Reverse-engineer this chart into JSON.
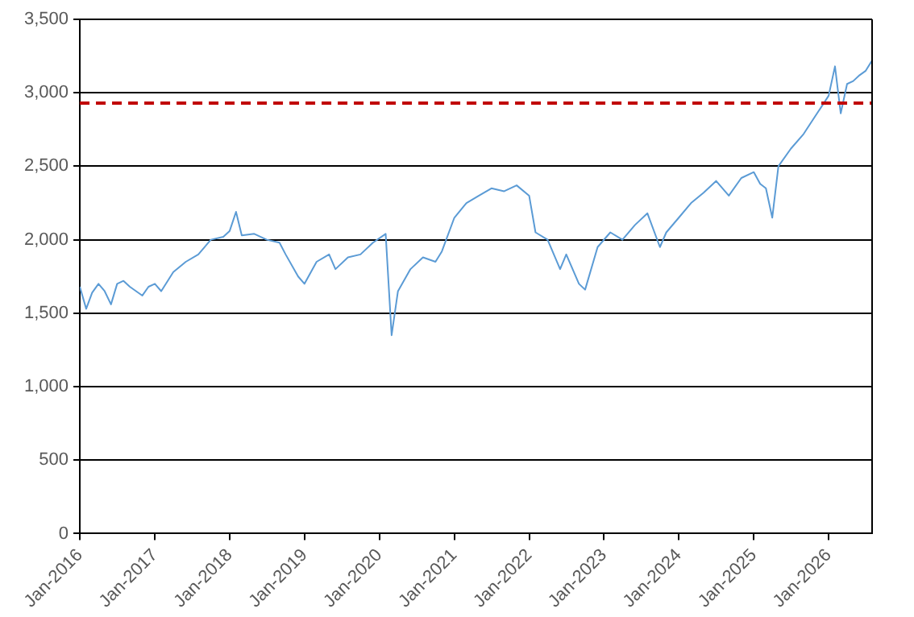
{
  "chart_data": {
    "type": "line",
    "x": [
      "2016-01",
      "2016-02",
      "2016-03",
      "2016-04",
      "2016-05",
      "2016-06",
      "2016-07",
      "2016-08",
      "2016-09",
      "2016-11",
      "2016-12",
      "2017-01",
      "2017-02",
      "2017-04",
      "2017-06",
      "2017-08",
      "2017-10",
      "2017-12",
      "2018-01",
      "2018-02",
      "2018-03",
      "2018-05",
      "2018-07",
      "2018-09",
      "2018-10",
      "2018-12",
      "2019-01",
      "2019-03",
      "2019-05",
      "2019-06",
      "2019-08",
      "2019-10",
      "2019-12",
      "2020-02",
      "2020-03",
      "2020-04",
      "2020-06",
      "2020-08",
      "2020-10",
      "2020-11",
      "2021-01",
      "2021-03",
      "2021-05",
      "2021-07",
      "2021-09",
      "2021-11",
      "2022-01",
      "2022-02",
      "2022-04",
      "2022-06",
      "2022-07",
      "2022-09",
      "2022-10",
      "2022-12",
      "2023-02",
      "2023-04",
      "2023-06",
      "2023-08",
      "2023-10",
      "2023-11",
      "2024-01",
      "2024-03",
      "2024-05",
      "2024-07",
      "2024-09",
      "2024-11",
      "2025-01",
      "2025-02",
      "2025-03",
      "2025-04",
      "2025-05",
      "2025-07",
      "2025-09",
      "2025-11",
      "2026-01",
      "2026-02",
      "2026-03",
      "2026-04",
      "2026-05",
      "2026-06",
      "2026-07",
      "2026-08"
    ],
    "series": [
      {
        "color": "#5b9bd5",
        "values": [
          1680,
          1530,
          1640,
          1700,
          1650,
          1560,
          1700,
          1720,
          1680,
          1620,
          1680,
          1700,
          1650,
          1780,
          1850,
          1900,
          2000,
          2020,
          2060,
          2190,
          2030,
          2040,
          2000,
          1980,
          1900,
          1750,
          1700,
          1850,
          1900,
          1800,
          1880,
          1900,
          1980,
          2040,
          1350,
          1650,
          1800,
          1880,
          1850,
          1920,
          2150,
          2250,
          2300,
          2350,
          2330,
          2370,
          2300,
          2050,
          2000,
          1800,
          1900,
          1700,
          1660,
          1950,
          2050,
          2000,
          2100,
          2180,
          1950,
          2050,
          2150,
          2250,
          2320,
          2400,
          2300,
          2420,
          2460,
          2380,
          2350,
          2150,
          2500,
          2620,
          2720,
          2850,
          2980,
          3180,
          2860,
          3060,
          3080,
          3120,
          3150,
          3220
        ]
      }
    ],
    "xlim": [
      "2016-01",
      "2026-08"
    ],
    "xticks": [
      {
        "value": "2016-01",
        "label": "Jan-2016"
      },
      {
        "value": "2017-01",
        "label": "Jan-2017"
      },
      {
        "value": "2018-01",
        "label": "Jan-2018"
      },
      {
        "value": "2019-01",
        "label": "Jan-2019"
      },
      {
        "value": "2020-01",
        "label": "Jan-2020"
      },
      {
        "value": "2021-01",
        "label": "Jan-2021"
      },
      {
        "value": "2022-01",
        "label": "Jan-2022"
      },
      {
        "value": "2023-01",
        "label": "Jan-2023"
      },
      {
        "value": "2024-01",
        "label": "Jan-2024"
      },
      {
        "value": "2025-01",
        "label": "Jan-2025"
      },
      {
        "value": "2026-01",
        "label": "Jan-2026"
      }
    ],
    "ylim": [
      0,
      3500
    ],
    "yticks": [
      0,
      {
        "value": 500,
        "label": "500"
      },
      {
        "value": 1000,
        "label": "1,000"
      },
      {
        "value": 1500,
        "label": "1,500"
      },
      {
        "value": 2000,
        "label": "2,000"
      },
      {
        "value": 2500,
        "label": "2,500"
      },
      {
        "value": 3000,
        "label": "3,000"
      },
      {
        "value": 3500,
        "label": "3,500"
      }
    ],
    "ref_lines": [
      {
        "axis": "y",
        "value": 2930,
        "color": "#c00000",
        "line_style": "dashed"
      }
    ],
    "grid": "y",
    "legend": false,
    "marker": "none",
    "line_style": "solid"
  }
}
